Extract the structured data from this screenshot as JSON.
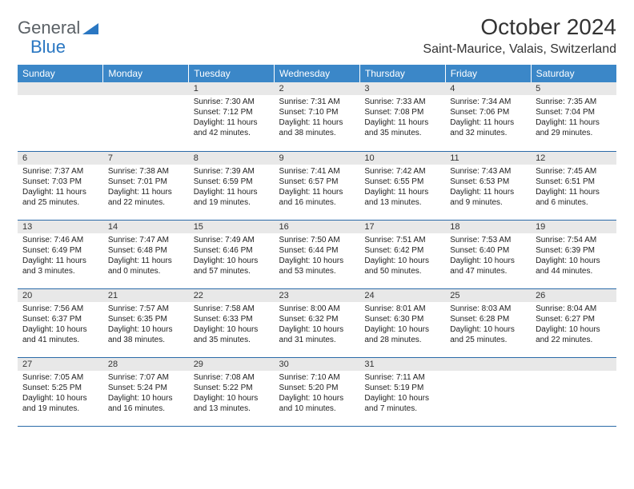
{
  "logo": {
    "word1": "General",
    "word2": "Blue"
  },
  "title": "October 2024",
  "location": "Saint-Maurice, Valais, Switzerland",
  "day_headers": [
    "Sunday",
    "Monday",
    "Tuesday",
    "Wednesday",
    "Thursday",
    "Friday",
    "Saturday"
  ],
  "colors": {
    "header_bg": "#3b87c8",
    "header_text": "#ffffff",
    "daynum_bg": "#e8e8e8",
    "rule": "#2a6aa8",
    "text": "#222222",
    "logo_gray": "#5b6166",
    "logo_blue": "#2a77c2"
  },
  "font": {
    "family": "Arial",
    "body_size": 10,
    "header_size": 12,
    "title_size": 28,
    "location_size": 16
  },
  "calendar_type": "month-grid",
  "weeks": [
    [
      null,
      null,
      {
        "n": "1",
        "sunrise": "7:30 AM",
        "sunset": "7:12 PM",
        "daylight": "11 hours and 42 minutes."
      },
      {
        "n": "2",
        "sunrise": "7:31 AM",
        "sunset": "7:10 PM",
        "daylight": "11 hours and 38 minutes."
      },
      {
        "n": "3",
        "sunrise": "7:33 AM",
        "sunset": "7:08 PM",
        "daylight": "11 hours and 35 minutes."
      },
      {
        "n": "4",
        "sunrise": "7:34 AM",
        "sunset": "7:06 PM",
        "daylight": "11 hours and 32 minutes."
      },
      {
        "n": "5",
        "sunrise": "7:35 AM",
        "sunset": "7:04 PM",
        "daylight": "11 hours and 29 minutes."
      }
    ],
    [
      {
        "n": "6",
        "sunrise": "7:37 AM",
        "sunset": "7:03 PM",
        "daylight": "11 hours and 25 minutes."
      },
      {
        "n": "7",
        "sunrise": "7:38 AM",
        "sunset": "7:01 PM",
        "daylight": "11 hours and 22 minutes."
      },
      {
        "n": "8",
        "sunrise": "7:39 AM",
        "sunset": "6:59 PM",
        "daylight": "11 hours and 19 minutes."
      },
      {
        "n": "9",
        "sunrise": "7:41 AM",
        "sunset": "6:57 PM",
        "daylight": "11 hours and 16 minutes."
      },
      {
        "n": "10",
        "sunrise": "7:42 AM",
        "sunset": "6:55 PM",
        "daylight": "11 hours and 13 minutes."
      },
      {
        "n": "11",
        "sunrise": "7:43 AM",
        "sunset": "6:53 PM",
        "daylight": "11 hours and 9 minutes."
      },
      {
        "n": "12",
        "sunrise": "7:45 AM",
        "sunset": "6:51 PM",
        "daylight": "11 hours and 6 minutes."
      }
    ],
    [
      {
        "n": "13",
        "sunrise": "7:46 AM",
        "sunset": "6:49 PM",
        "daylight": "11 hours and 3 minutes."
      },
      {
        "n": "14",
        "sunrise": "7:47 AM",
        "sunset": "6:48 PM",
        "daylight": "11 hours and 0 minutes."
      },
      {
        "n": "15",
        "sunrise": "7:49 AM",
        "sunset": "6:46 PM",
        "daylight": "10 hours and 57 minutes."
      },
      {
        "n": "16",
        "sunrise": "7:50 AM",
        "sunset": "6:44 PM",
        "daylight": "10 hours and 53 minutes."
      },
      {
        "n": "17",
        "sunrise": "7:51 AM",
        "sunset": "6:42 PM",
        "daylight": "10 hours and 50 minutes."
      },
      {
        "n": "18",
        "sunrise": "7:53 AM",
        "sunset": "6:40 PM",
        "daylight": "10 hours and 47 minutes."
      },
      {
        "n": "19",
        "sunrise": "7:54 AM",
        "sunset": "6:39 PM",
        "daylight": "10 hours and 44 minutes."
      }
    ],
    [
      {
        "n": "20",
        "sunrise": "7:56 AM",
        "sunset": "6:37 PM",
        "daylight": "10 hours and 41 minutes."
      },
      {
        "n": "21",
        "sunrise": "7:57 AM",
        "sunset": "6:35 PM",
        "daylight": "10 hours and 38 minutes."
      },
      {
        "n": "22",
        "sunrise": "7:58 AM",
        "sunset": "6:33 PM",
        "daylight": "10 hours and 35 minutes."
      },
      {
        "n": "23",
        "sunrise": "8:00 AM",
        "sunset": "6:32 PM",
        "daylight": "10 hours and 31 minutes."
      },
      {
        "n": "24",
        "sunrise": "8:01 AM",
        "sunset": "6:30 PM",
        "daylight": "10 hours and 28 minutes."
      },
      {
        "n": "25",
        "sunrise": "8:03 AM",
        "sunset": "6:28 PM",
        "daylight": "10 hours and 25 minutes."
      },
      {
        "n": "26",
        "sunrise": "8:04 AM",
        "sunset": "6:27 PM",
        "daylight": "10 hours and 22 minutes."
      }
    ],
    [
      {
        "n": "27",
        "sunrise": "7:05 AM",
        "sunset": "5:25 PM",
        "daylight": "10 hours and 19 minutes."
      },
      {
        "n": "28",
        "sunrise": "7:07 AM",
        "sunset": "5:24 PM",
        "daylight": "10 hours and 16 minutes."
      },
      {
        "n": "29",
        "sunrise": "7:08 AM",
        "sunset": "5:22 PM",
        "daylight": "10 hours and 13 minutes."
      },
      {
        "n": "30",
        "sunrise": "7:10 AM",
        "sunset": "5:20 PM",
        "daylight": "10 hours and 10 minutes."
      },
      {
        "n": "31",
        "sunrise": "7:11 AM",
        "sunset": "5:19 PM",
        "daylight": "10 hours and 7 minutes."
      },
      null,
      null
    ]
  ],
  "labels": {
    "sunrise": "Sunrise:",
    "sunset": "Sunset:",
    "daylight": "Daylight:"
  }
}
